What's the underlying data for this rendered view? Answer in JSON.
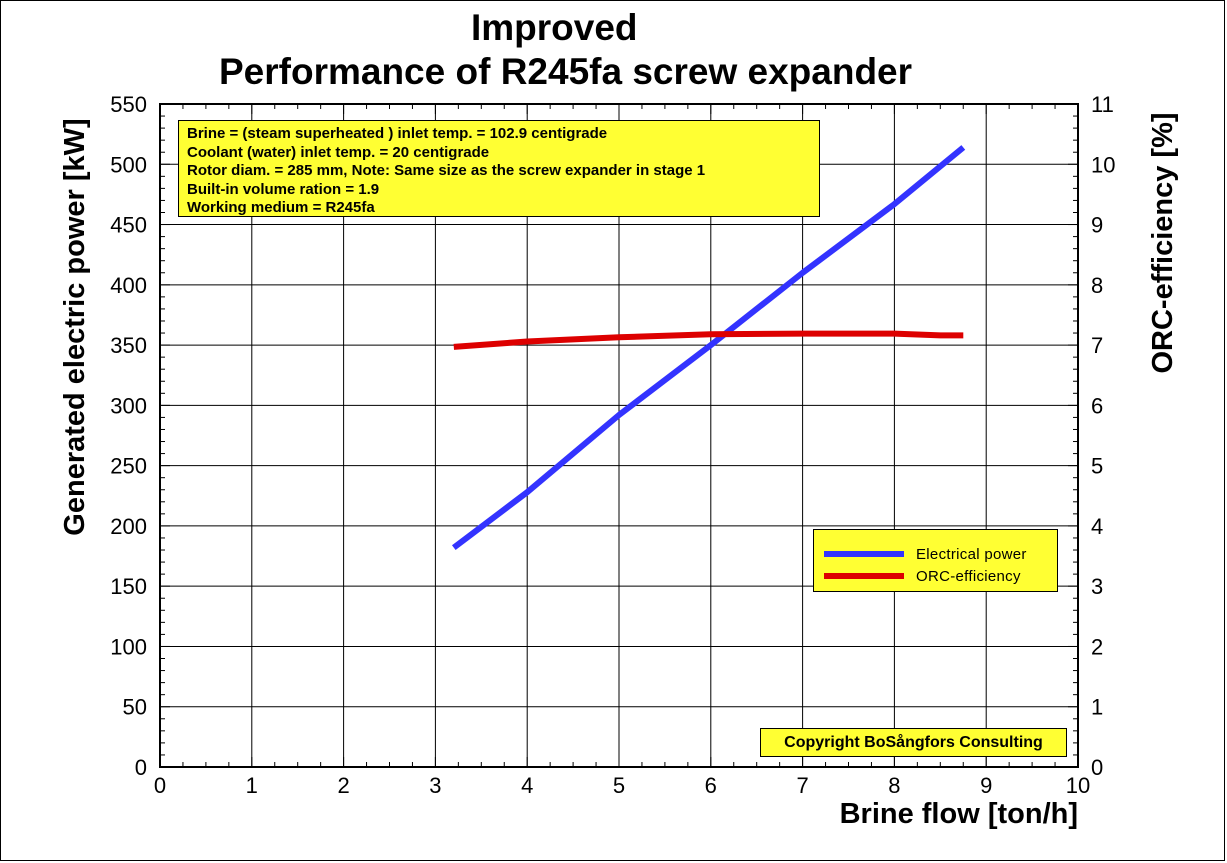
{
  "title_lines": [
    "Improved",
    "Performance of R245fa screw expander"
  ],
  "info_lines": [
    "Brine = (steam superheated ) inlet temp. = 102.9 centigrade",
    "Coolant (water) inlet temp. = 20 centigrade",
    "Rotor diam. = 285 mm, Note: Same size as the screw expander in stage 1",
    "Built-in volume ration = 1.9",
    "Working medium = R245fa"
  ],
  "copyright": "Copyright BoSångfors Consulting",
  "chart_data": {
    "type": "line",
    "xlabel": "Brine flow [ton/h]",
    "ylabel": "Generated electric power [kW]",
    "y2label": "ORC-efficiency [%]",
    "xlim": [
      0,
      10
    ],
    "ylim": [
      0,
      550
    ],
    "y2lim": [
      0,
      11
    ],
    "x_ticks": [
      "0",
      "1",
      "2",
      "3",
      "4",
      "5",
      "6",
      "7",
      "8",
      "9",
      "10"
    ],
    "y_ticks": [
      "0",
      "50",
      "100",
      "150",
      "200",
      "250",
      "300",
      "350",
      "400",
      "450",
      "500",
      "550"
    ],
    "y2_ticks": [
      "0",
      "1",
      "2",
      "3",
      "4",
      "5",
      "6",
      "7",
      "8",
      "9",
      "10",
      "11"
    ],
    "grid": true,
    "legend_position": "right",
    "series": [
      {
        "name": "Electrical power",
        "axis": "left",
        "color": "#3333ff",
        "x": [
          3.2,
          4.0,
          5.0,
          6.0,
          7.0,
          8.0,
          8.75
        ],
        "y": [
          182,
          228,
          292,
          350,
          410,
          467,
          514
        ]
      },
      {
        "name": "ORC-efficiency",
        "axis": "right",
        "color": "#dd0000",
        "x": [
          3.2,
          4.0,
          5.0,
          6.0,
          7.0,
          8.0,
          8.5,
          8.75
        ],
        "y": [
          6.97,
          7.06,
          7.13,
          7.18,
          7.19,
          7.19,
          7.16,
          7.16
        ]
      }
    ]
  }
}
